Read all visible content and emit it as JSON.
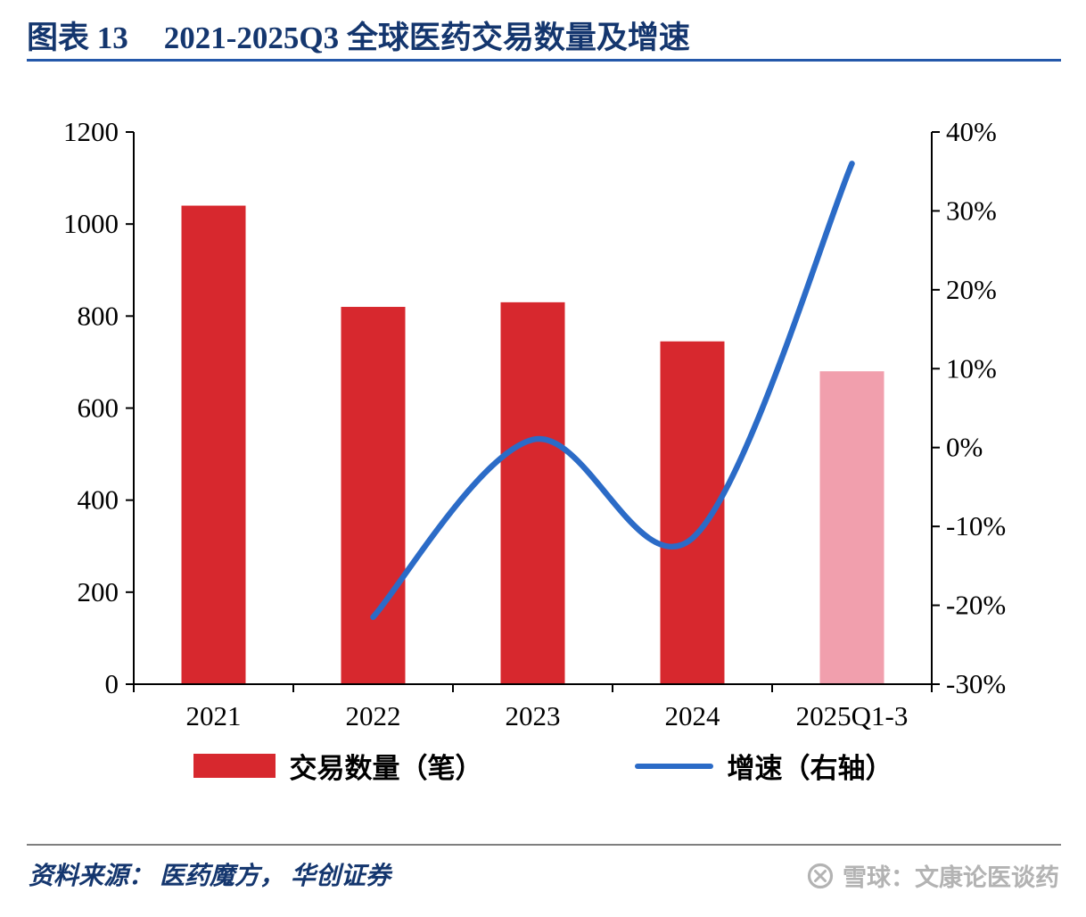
{
  "header": {
    "chart_label": "图表 13",
    "title": "2021-2025Q3 全球医药交易数量及增速"
  },
  "chart_data": {
    "type": "bar+line",
    "title": "2021-2025Q3 全球医药交易数量及增速",
    "categories": [
      "2021",
      "2022",
      "2023",
      "2024",
      "2025Q1-3"
    ],
    "series": [
      {
        "name": "交易数量（笔）",
        "type": "bar",
        "axis": "left",
        "values": [
          1040,
          820,
          830,
          745,
          680
        ],
        "color": "#d7282e",
        "bar_colors": [
          "#d7282e",
          "#d7282e",
          "#d7282e",
          "#d7282e",
          "#f19fad"
        ]
      },
      {
        "name": "增速（右轴）",
        "type": "line",
        "axis": "right",
        "x": [
          "2022",
          "2023",
          "2024",
          "2025Q1-3"
        ],
        "values_pct": [
          -21.5,
          1,
          -11.5,
          36
        ],
        "color": "#2b6bc7"
      }
    ],
    "left_axis": {
      "min": 0,
      "max": 1200,
      "step": 200,
      "tick_labels": [
        "0",
        "200",
        "400",
        "600",
        "800",
        "1000",
        "1200"
      ]
    },
    "right_axis": {
      "min": -30,
      "max": 40,
      "step": 10,
      "tick_labels": [
        "-30%",
        "-20%",
        "-10%",
        "0%",
        "10%",
        "20%",
        "30%",
        "40%"
      ]
    },
    "grid": false,
    "legend_position": "bottom"
  },
  "legend": [
    {
      "label": "交易数量（笔）",
      "swatch": "bar"
    },
    {
      "label": "增速（右轴）",
      "swatch": "line"
    }
  ],
  "colors": {
    "title": "#14366e",
    "title_underline": "#2458aa",
    "bar_red": "#d7282e",
    "bar_pink": "#f19fad",
    "line_blue": "#2b6bc7",
    "watermark_gray": "#b3b3b3"
  },
  "footer": {
    "source": "资料来源： 医药魔方， 华创证券",
    "watermark": "雪球：文康论医谈药"
  }
}
